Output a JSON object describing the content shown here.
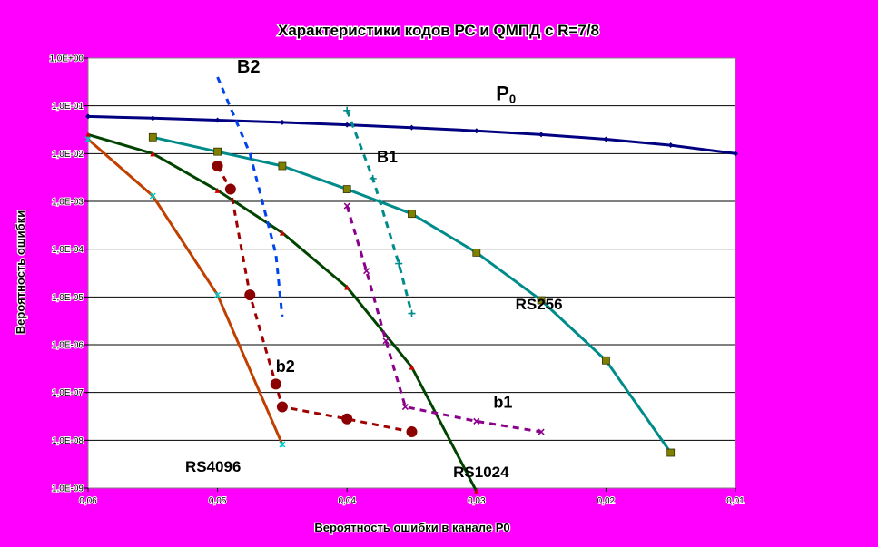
{
  "chart_data": {
    "type": "line",
    "title": "Характеристики кодов РС и QМПД с R=7/8",
    "xlabel": "Вероятность ошибки в канале  P0",
    "ylabel": "Вероятность ошибки",
    "x_reversed": true,
    "xlim": [
      0.06,
      0.01
    ],
    "x_ticks": [
      {
        "value": 0.06,
        "label": "0,06"
      },
      {
        "value": 0.05,
        "label": "0,05"
      },
      {
        "value": 0.04,
        "label": "0,04"
      },
      {
        "value": 0.03,
        "label": "0,03"
      },
      {
        "value": 0.02,
        "label": "0,02"
      },
      {
        "value": 0.01,
        "label": "0,01"
      }
    ],
    "y_scale": "log",
    "ylim": [
      1e-09,
      1
    ],
    "y_ticks": [
      {
        "value": 1,
        "label": "1,0E+00"
      },
      {
        "value": 0.1,
        "label": "1,0E-01"
      },
      {
        "value": 0.01,
        "label": "1,0E-02"
      },
      {
        "value": 0.001,
        "label": "1,0E-03"
      },
      {
        "value": 0.0001,
        "label": "1,0E-04"
      },
      {
        "value": 1e-05,
        "label": "1,0E-05"
      },
      {
        "value": 1e-06,
        "label": "1,0E-06"
      },
      {
        "value": 1e-07,
        "label": "1,0E-07"
      },
      {
        "value": 1e-08,
        "label": "1,0E-08"
      },
      {
        "value": 1e-09,
        "label": "1,0E-09"
      }
    ],
    "grid": "horizontal",
    "legend": "none",
    "colors": {
      "page_background": "#FF00FF",
      "plot_background": "#FFFFFF",
      "grid": "#000000"
    },
    "series": [
      {
        "label": "P0",
        "label_main": "P",
        "label_sub": "0",
        "label_at": [
          0.0285,
          0.13
        ],
        "label_size": 22,
        "color": "#000080",
        "marker": "diamond",
        "marker_color": "#000080",
        "marker_size": 3,
        "dashed": false,
        "points": [
          [
            0.06,
            0.06
          ],
          [
            0.055,
            0.055
          ],
          [
            0.05,
            0.05
          ],
          [
            0.045,
            0.045
          ],
          [
            0.04,
            0.04
          ],
          [
            0.035,
            0.035
          ],
          [
            0.03,
            0.03
          ],
          [
            0.025,
            0.025
          ],
          [
            0.02,
            0.02
          ],
          [
            0.015,
            0.015
          ],
          [
            0.01,
            0.01
          ]
        ]
      },
      {
        "label": "RS256",
        "label_at": [
          0.027,
          5.5e-06
        ],
        "label_size": 17,
        "color": "#008B8B",
        "marker": "square",
        "marker_color": "#808000",
        "marker_size": 4,
        "dashed": false,
        "points": [
          [
            0.055,
            0.022
          ],
          [
            0.05,
            0.011
          ],
          [
            0.045,
            0.0055
          ],
          [
            0.04,
            0.0018
          ],
          [
            0.035,
            0.00055
          ],
          [
            0.03,
            8.5e-05
          ],
          [
            0.025,
            8.5e-06
          ],
          [
            0.02,
            4.7e-07
          ],
          [
            0.015,
            5.5e-09
          ]
        ]
      },
      {
        "label": "RS1024",
        "label_at": [
          0.0318,
          1.7e-09
        ],
        "label_size": 17,
        "color": "#004400",
        "marker": "triangle",
        "marker_color": "#CC0000",
        "marker_size": 3,
        "dashed": false,
        "points": [
          [
            0.06,
            0.025
          ],
          [
            0.055,
            0.01
          ],
          [
            0.05,
            0.0017
          ],
          [
            0.045,
            0.00022
          ],
          [
            0.04,
            1.6e-05
          ],
          [
            0.035,
            3.4e-07
          ],
          [
            0.03,
            8.5e-10
          ]
        ]
      },
      {
        "label": "RS4096",
        "label_at": [
          0.0525,
          2.2e-09
        ],
        "label_size": 17,
        "color": "#C04000",
        "marker": "star",
        "marker_color": "#00CCCC",
        "marker_size": 3,
        "dashed": false,
        "points": [
          [
            0.06,
            0.02
          ],
          [
            0.055,
            0.0013
          ],
          [
            0.05,
            1.1e-05
          ],
          [
            0.045,
            8.2e-09
          ]
        ]
      },
      {
        "label": "B2",
        "label_at": [
          0.0485,
          0.5
        ],
        "label_size": 20,
        "color": "#0044EE",
        "marker": "none",
        "marker_color": "#0044EE",
        "marker_size": 0,
        "dashed": true,
        "points": [
          [
            0.05,
            0.4
          ],
          [
            0.0475,
            0.01
          ],
          [
            0.0455,
            8e-05
          ],
          [
            0.045,
            3.9e-06
          ]
        ]
      },
      {
        "label": "B1",
        "label_at": [
          0.0377,
          0.0066
        ],
        "label_size": 18,
        "color": "#008B8B",
        "marker": "plus",
        "marker_color": "#008B8B",
        "marker_size": 4,
        "dashed": true,
        "points": [
          [
            0.04,
            0.08
          ],
          [
            0.038,
            0.003
          ],
          [
            0.036,
            5e-05
          ],
          [
            0.035,
            4.5e-06
          ]
        ]
      },
      {
        "label": "b2",
        "label_at": [
          0.0455,
          2.7e-07
        ],
        "label_size": 18,
        "color": "#A00000",
        "marker": "circle",
        "marker_color": "#8B0000",
        "marker_size": 6,
        "dashed": true,
        "points": [
          [
            0.05,
            0.0055
          ],
          [
            0.049,
            0.0018
          ],
          [
            0.0475,
            1.1e-05
          ],
          [
            0.0455,
            1.5e-07
          ],
          [
            0.045,
            5e-08
          ],
          [
            0.04,
            2.8e-08
          ],
          [
            0.035,
            1.5e-08
          ]
        ]
      },
      {
        "label": "b1",
        "label_at": [
          0.0287,
          4.8e-08
        ],
        "label_size": 18,
        "color": "#8B008B",
        "marker": "x",
        "marker_color": "#8B008B",
        "marker_size": 3,
        "dashed": true,
        "points": [
          [
            0.04,
            0.0008
          ],
          [
            0.0385,
            3.5e-05
          ],
          [
            0.037,
            1.2e-06
          ],
          [
            0.0355,
            5e-08
          ],
          [
            0.03,
            2.5e-08
          ],
          [
            0.025,
            1.5e-08
          ]
        ]
      }
    ]
  }
}
